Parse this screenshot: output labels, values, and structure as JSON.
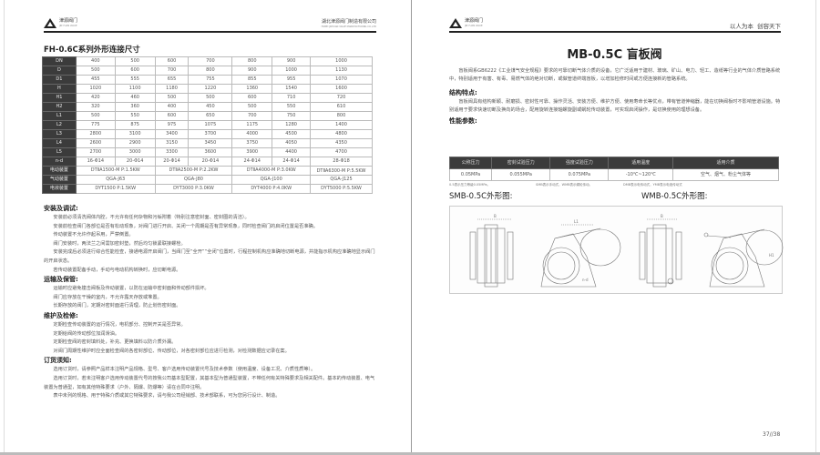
{
  "left_page": {
    "header": {
      "logo_text": "津源阀门",
      "logo_sub": "JIN YUAN VALVE",
      "company": "湖北津源阀门制造有限公司",
      "company_en": "HUBEI JINYUAN VALVE MANUFACTURING CO.,LTD"
    },
    "table_title": "FH-0.6C系列外形连接尺寸",
    "dim_table": {
      "rows": [
        {
          "label": "DN",
          "cells": [
            "400",
            "500",
            "600",
            "700",
            "800",
            "900",
            "1000"
          ]
        },
        {
          "label": "D",
          "cells": [
            "500",
            "600",
            "700",
            "800",
            "900",
            "1000",
            "1130"
          ]
        },
        {
          "label": "D1",
          "cells": [
            "455",
            "555",
            "655",
            "755",
            "855",
            "955",
            "1070"
          ]
        },
        {
          "label": "H",
          "cells": [
            "1020",
            "1100",
            "1180",
            "1220",
            "1360",
            "1540",
            "1600"
          ]
        },
        {
          "label": "H1",
          "cells": [
            "420",
            "460",
            "500",
            "500",
            "600",
            "710",
            "720"
          ]
        },
        {
          "label": "H2",
          "cells": [
            "320",
            "360",
            "400",
            "450",
            "500",
            "550",
            "610"
          ]
        },
        {
          "label": "L1",
          "cells": [
            "500",
            "550",
            "600",
            "650",
            "700",
            "750",
            "800"
          ]
        },
        {
          "label": "L2",
          "cells": [
            "775",
            "875",
            "975",
            "1075",
            "1175",
            "1280",
            "1400"
          ]
        },
        {
          "label": "L3",
          "cells": [
            "2800",
            "3100",
            "3400",
            "3700",
            "4000",
            "4500",
            "4800"
          ]
        },
        {
          "label": "L4",
          "cells": [
            "2600",
            "2900",
            "3150",
            "3450",
            "3750",
            "4050",
            "4350"
          ]
        },
        {
          "label": "L5",
          "cells": [
            "2700",
            "3000",
            "3300",
            "3600",
            "3900",
            "4400",
            "4700"
          ]
        },
        {
          "label": "n-d",
          "cells": [
            "16-Φ14",
            "20-Φ14",
            "20-Φ14",
            "20-Φ14",
            "24-Φ14",
            "24-Φ14",
            "28-Φ18"
          ]
        }
      ],
      "devices": [
        {
          "label": "电动装置",
          "cells": [
            "DTⅡA1500-M P:1.5KW",
            "DTⅡA2500-M P:2.2KW",
            "DTⅡA4000-M P:3.0KW",
            "DTⅡA6300-M P:5.5KW"
          ]
        },
        {
          "label": "气动装置",
          "cells": [
            "QGA-J63",
            "QGA-J80",
            "QGA-J100",
            "QGA-J125"
          ]
        },
        {
          "label": "电液装置",
          "cells": [
            "DYT1500 P:1.5KW",
            "DYT3000 P:3.0KW",
            "DYT4000 P:4.0KW",
            "DYT5000 P:5.5KW"
          ]
        }
      ]
    },
    "sections": [
      {
        "heading": "安装及调试:",
        "paras": [
          "安装前必须清洗阀体内腔，不允许有任何杂物和污垢附着（特别注意密封面、密封圈的清洁）。",
          "安装前检查阀门各部位是否有松动现象，对阀门进行开启、关闭一个周期是否有异常现象，同时检查阀门的启闭位置是否准确。",
          "传动装置不允许作起吊用，严禁倒置。",
          "阀门安装时，两法兰之间需加密封垫，然后均匀锁紧联接螺栓。",
          "安装完成后必须进行综合性能检查，接通电源开启阀门，当阀门至“全开”“全闭”位置时，行程控制机构应准确地切断电源，并能指示机构应准确地显示阀门的开启状态。",
          "若传动装置配备手动，手动与电动机构转换时，应切断电源。"
        ]
      },
      {
        "heading": "运输及保管:",
        "paras": [
          "运输时应避免撞击阀板及传动装置，以防在运输中密封面和传动部件损坏。",
          "阀门应存放在干燥的室内，不允许露天存放或堆置。",
          "长期存放的阀门，定期对密封面进行清理，防止划伤密封面。"
        ]
      },
      {
        "heading": "维护及检修:",
        "paras": [
          "定期检查传动装置的运行情况，电机部分、控制开关是否异常。",
          "定期给阀的传动部位加润滑油。",
          "定期检查阀的密封填料处，补充、更换填料以防介质外漏。",
          "对阀门周期性维护时应全面检查阀的各密封部位、传动部位，对各密封部位应进行检测，对检测数据应记录在案。"
        ]
      },
      {
        "heading": "订货须知:",
        "paras": [
          "选用订货时，请参照产品样本注明产品规格、型号、客户选用传动装置代号及技术参数（使用温度、设备工况、介质性质等）。",
          "选用订货时，若未注明客户选用传动装置代号的按我公司基本型配置，其基本型为普通型装置，不带任何有关特殊要求及相关配件。基本的传动装置、电气装置为普通型，如有其他特殊要求（户外、隔爆、防爆等）请在合同中注明。",
          "表中未列的规格、用于特殊介质或其它特殊要求，请与我公司经销部、技术部联系，可为您另行设计、制造。"
        ]
      }
    ]
  },
  "right_page": {
    "header": {
      "logo_text": "津源阀门",
      "logo_sub": "JIN YUAN VALVE",
      "slogan": "以人为本  创容天下"
    },
    "title": "MB-0.5C 盲板阀",
    "intro": "盲板阀系GB6222《工业煤气安全规程》要求的可靠切断气体介质的设备，它广泛适用于建材、玻璃、矿山、电力、轻工、造纸等行业的气体介质管路系统中，特别适用于有害、有毒、易燃气体的绝对切断，或做管道终端盲板，以增加检修时间或方便连接新的管路系统。",
    "features_heading": "结构特点:",
    "features": "盲板阀具有结构新颖、耐磨损、密封性可靠、操作灵活、安装方便、维护方便、使用寿命长等优点，带有管道伸缩器，能在切换阀板时不影响管道设施。特别适用于要求快速切断及换向的场合，配用旋转连接轴螺旋副或蜗轮传动装置，可实现启闭操作，是切换使用的理想设备。",
    "perf_heading": "性能参数:",
    "perf_table": {
      "headers": [
        "公称压力",
        "密封试验压力",
        "强度试验压力",
        "适用温度",
        "适用介质"
      ],
      "values": [
        "0.05MPa",
        "0.055MPa",
        "0.075MPa",
        "-10℃~120℃",
        "空气、烟气、粉尘气体等"
      ]
    },
    "notes": [
      "0.5表示压力等级0.05MPa。",
      "SMB表示手动式，WMB表示蜗轮传动。",
      "DMB表示电传动式，YMB表示电液传动式"
    ],
    "drawing_titles": [
      "SMB-0.5C外形图:",
      "WMB-0.5C外形图:"
    ],
    "drawing_labels": {
      "b": "B",
      "l": "L1",
      "d": "D",
      "nd": "n-d",
      "h": "H1"
    },
    "page_number": "37//38"
  }
}
